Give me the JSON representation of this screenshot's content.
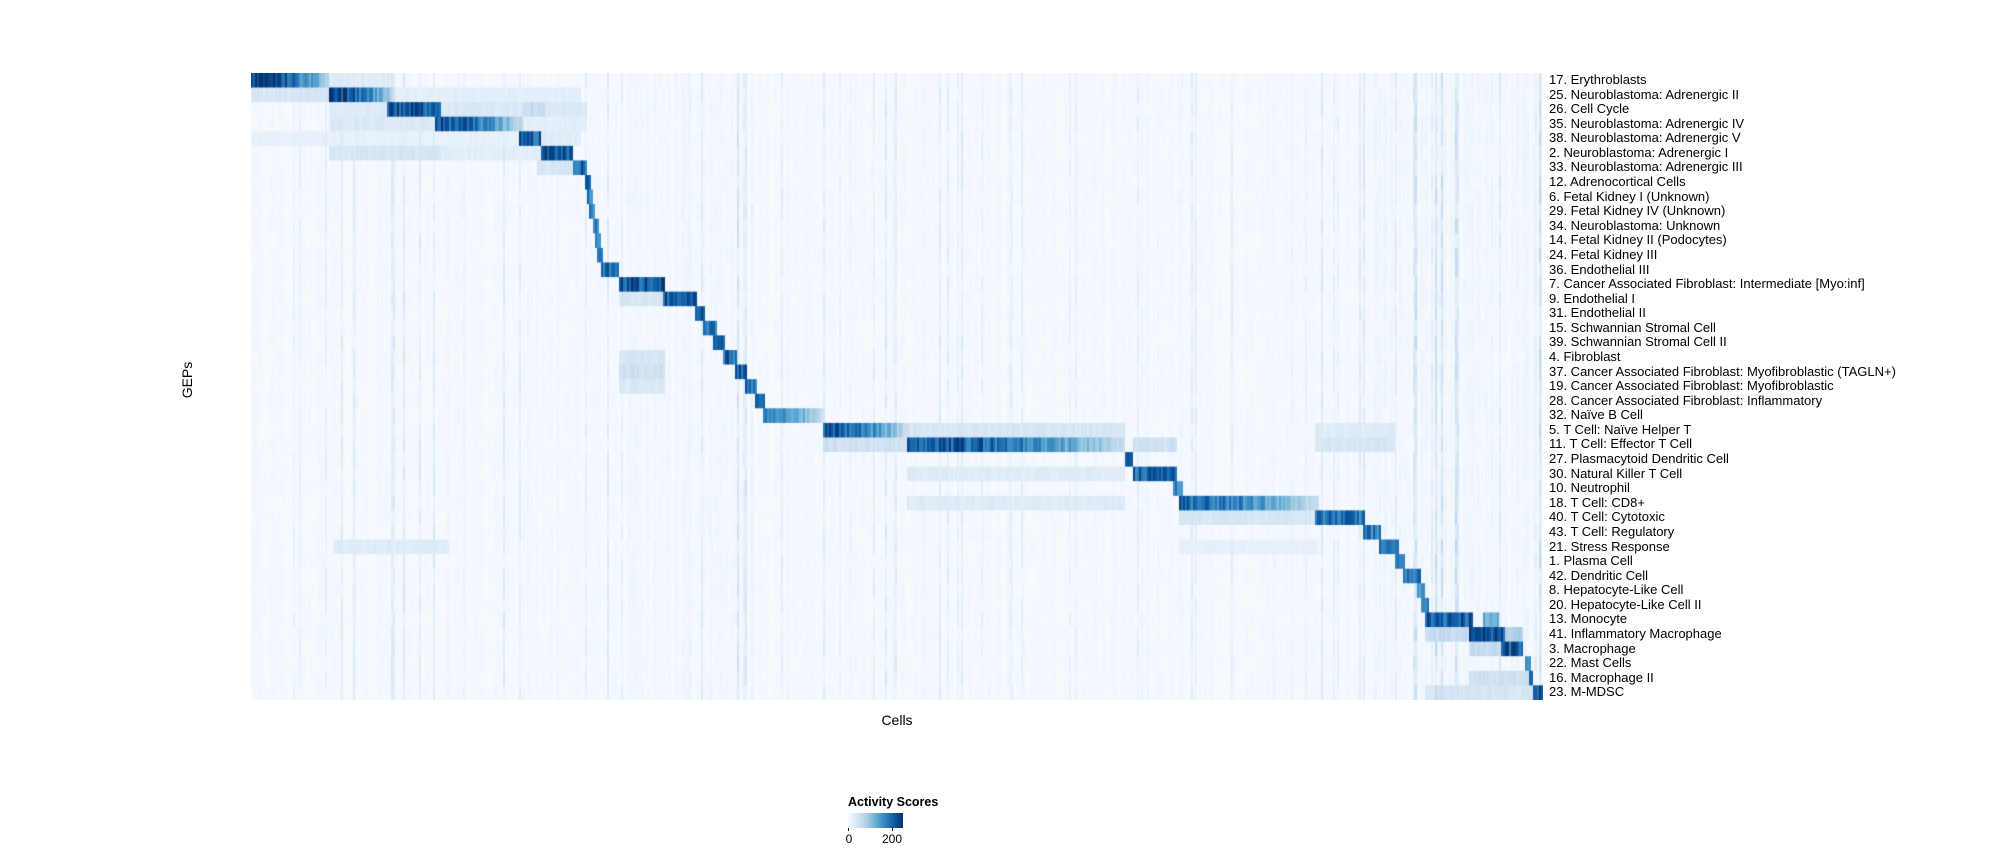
{
  "figure": {
    "background": "#ffffff",
    "x_axis_label": "Cells",
    "y_axis_label": "GEPs"
  },
  "legend": {
    "title": "Activity Scores",
    "tick_min": "0",
    "tick_max": "200"
  },
  "chart_data": {
    "type": "heatmap",
    "title": "",
    "xlabel": "Cells",
    "ylabel": "GEPs",
    "value_range": [
      0,
      250
    ],
    "legend": {
      "title": "Activity Scores",
      "ticks": [
        0,
        200
      ],
      "position": "bottom-center"
    },
    "grid": false,
    "colormap": {
      "name": "Blues",
      "stops": [
        [
          0,
          "#f7fbff"
        ],
        [
          0.125,
          "#deebf7"
        ],
        [
          0.25,
          "#c6dbef"
        ],
        [
          0.375,
          "#9ecae1"
        ],
        [
          0.5,
          "#6baed6"
        ],
        [
          0.625,
          "#4292c6"
        ],
        [
          0.75,
          "#2171b5"
        ],
        [
          0.875,
          "#08519c"
        ],
        [
          1,
          "#08306b"
        ]
      ]
    },
    "segment_fields": [
      "x_start_fraction",
      "x_end_fraction",
      "peak_activity_score"
    ],
    "rows": [
      {
        "label": "17. Erythroblasts",
        "segments": [
          [
            0.0,
            0.061,
            240
          ],
          [
            0.061,
            0.112,
            30
          ]
        ]
      },
      {
        "label": "25. Neuroblastoma: Adrenergic II",
        "segments": [
          [
            0.0,
            0.061,
            40
          ],
          [
            0.061,
            0.111,
            225
          ],
          [
            0.111,
            0.256,
            25
          ]
        ]
      },
      {
        "label": "26. Cell Cycle",
        "segments": [
          [
            0.061,
            0.106,
            30
          ],
          [
            0.106,
            0.147,
            210
          ],
          [
            0.147,
            0.26,
            35
          ],
          [
            0.21,
            0.228,
            60
          ]
        ]
      },
      {
        "label": "35. Neuroblastoma: Adrenergic IV",
        "segments": [
          [
            0.061,
            0.142,
            35
          ],
          [
            0.142,
            0.21,
            215
          ],
          [
            0.21,
            0.26,
            25
          ]
        ]
      },
      {
        "label": "38. Neuroblastoma: Adrenergic V",
        "segments": [
          [
            0.0,
            0.207,
            20
          ],
          [
            0.207,
            0.225,
            205
          ],
          [
            0.225,
            0.256,
            30
          ]
        ]
      },
      {
        "label": "2. Neuroblastoma: Adrenergic I",
        "segments": [
          [
            0.061,
            0.147,
            40
          ],
          [
            0.147,
            0.225,
            25
          ],
          [
            0.225,
            0.249,
            215
          ]
        ]
      },
      {
        "label": "33. Neuroblastoma: Adrenergic III",
        "segments": [
          [
            0.222,
            0.249,
            40
          ],
          [
            0.249,
            0.26,
            205
          ]
        ]
      },
      {
        "label": "12. Adrenocortical Cells",
        "segments": [
          [
            0.258,
            0.263,
            185
          ]
        ]
      },
      {
        "label": "6. Fetal Kidney I (Unknown)",
        "segments": [
          [
            0.26,
            0.265,
            175
          ]
        ]
      },
      {
        "label": "29. Fetal Kidney IV (Unknown)",
        "segments": [
          [
            0.262,
            0.267,
            165
          ]
        ]
      },
      {
        "label": "34. Neuroblastoma: Unknown",
        "segments": [
          [
            0.264,
            0.269,
            175
          ]
        ]
      },
      {
        "label": "14. Fetal Kidney II (Podocytes)",
        "segments": [
          [
            0.266,
            0.271,
            165
          ]
        ]
      },
      {
        "label": "24. Fetal Kidney III",
        "segments": [
          [
            0.268,
            0.273,
            175
          ]
        ]
      },
      {
        "label": "36. Endothelial III",
        "segments": [
          [
            0.271,
            0.285,
            195
          ]
        ]
      },
      {
        "label": "7. Cancer Associated Fibroblast: Intermediate [Myo:inf]",
        "segments": [
          [
            0.285,
            0.321,
            215
          ]
        ]
      },
      {
        "label": "9. Endothelial I",
        "segments": [
          [
            0.285,
            0.319,
            40
          ],
          [
            0.319,
            0.345,
            205
          ]
        ]
      },
      {
        "label": "31. Endothelial II",
        "segments": [
          [
            0.343,
            0.352,
            195
          ]
        ]
      },
      {
        "label": "15. Schwannian Stromal Cell",
        "segments": [
          [
            0.35,
            0.36,
            185
          ]
        ]
      },
      {
        "label": "39. Schwannian Stromal Cell II",
        "segments": [
          [
            0.358,
            0.367,
            185
          ]
        ]
      },
      {
        "label": "4. Fibroblast",
        "segments": [
          [
            0.285,
            0.321,
            40
          ],
          [
            0.365,
            0.376,
            195
          ]
        ]
      },
      {
        "label": "37. Cancer Associated Fibroblast: Myofibroblastic (TAGLN+)",
        "segments": [
          [
            0.285,
            0.321,
            50
          ],
          [
            0.374,
            0.384,
            200
          ]
        ]
      },
      {
        "label": "19. Cancer Associated Fibroblast: Myofibroblastic",
        "segments": [
          [
            0.285,
            0.321,
            35
          ],
          [
            0.382,
            0.392,
            195
          ]
        ]
      },
      {
        "label": "28. Cancer Associated Fibroblast: Inflammatory",
        "segments": [
          [
            0.39,
            0.398,
            185
          ]
        ]
      },
      {
        "label": "32. Naïve B Cell",
        "segments": [
          [
            0.396,
            0.445,
            165
          ]
        ]
      },
      {
        "label": "5. T Cell: Naïve Helper T",
        "segments": [
          [
            0.443,
            0.509,
            205
          ],
          [
            0.509,
            0.677,
            40
          ],
          [
            0.824,
            0.885,
            30
          ]
        ]
      },
      {
        "label": "11. T Cell: Effector T Cell",
        "segments": [
          [
            0.443,
            0.507,
            50
          ],
          [
            0.507,
            0.677,
            215
          ],
          [
            0.682,
            0.716,
            50
          ],
          [
            0.824,
            0.885,
            40
          ]
        ]
      },
      {
        "label": "27. Plasmacytoid Dendritic Cell",
        "segments": [
          [
            0.676,
            0.683,
            185
          ]
        ]
      },
      {
        "label": "30. Natural Killer T Cell",
        "segments": [
          [
            0.507,
            0.677,
            30
          ],
          [
            0.682,
            0.716,
            195
          ]
        ]
      },
      {
        "label": "10. Neutrophil",
        "segments": [
          [
            0.714,
            0.721,
            175
          ]
        ]
      },
      {
        "label": "18. T Cell: CD8+",
        "segments": [
          [
            0.507,
            0.677,
            30
          ],
          [
            0.719,
            0.826,
            195
          ]
        ]
      },
      {
        "label": "40. T Cell: Cytotoxic",
        "segments": [
          [
            0.719,
            0.824,
            40
          ],
          [
            0.824,
            0.863,
            185
          ]
        ]
      },
      {
        "label": "43. T Cell: Regulatory",
        "segments": [
          [
            0.861,
            0.875,
            175
          ]
        ]
      },
      {
        "label": "21. Stress Response",
        "segments": [
          [
            0.064,
            0.153,
            30
          ],
          [
            0.719,
            0.826,
            20
          ],
          [
            0.873,
            0.888,
            185
          ]
        ]
      },
      {
        "label": "1. Plasma Cell",
        "segments": [
          [
            0.886,
            0.893,
            175
          ]
        ]
      },
      {
        "label": "42. Dendritic Cell",
        "segments": [
          [
            0.891,
            0.905,
            185
          ]
        ]
      },
      {
        "label": "8. Hepatocyte-Like Cell",
        "segments": [
          [
            0.903,
            0.908,
            165
          ]
        ]
      },
      {
        "label": "20. Hepatocyte-Like Cell II",
        "segments": [
          [
            0.906,
            0.911,
            165
          ]
        ]
      },
      {
        "label": "13. Monocyte",
        "segments": [
          [
            0.909,
            0.946,
            205
          ],
          [
            0.954,
            0.966,
            120
          ]
        ]
      },
      {
        "label": "41. Inflammatory Macrophage",
        "segments": [
          [
            0.909,
            0.942,
            60
          ],
          [
            0.942,
            0.97,
            215
          ],
          [
            0.97,
            0.985,
            85
          ]
        ]
      },
      {
        "label": "3. Macrophage",
        "segments": [
          [
            0.942,
            0.968,
            60
          ],
          [
            0.968,
            0.985,
            205
          ]
        ]
      },
      {
        "label": "22. Mast Cells",
        "segments": [
          [
            0.986,
            0.99,
            185
          ]
        ]
      },
      {
        "label": "16. Macrophage II",
        "segments": [
          [
            0.942,
            0.989,
            50
          ],
          [
            0.989,
            0.993,
            195
          ]
        ]
      },
      {
        "label": "23. M-MDSC",
        "segments": [
          [
            0.909,
            0.993,
            40
          ],
          [
            0.993,
            1.0,
            225
          ]
        ]
      }
    ]
  }
}
